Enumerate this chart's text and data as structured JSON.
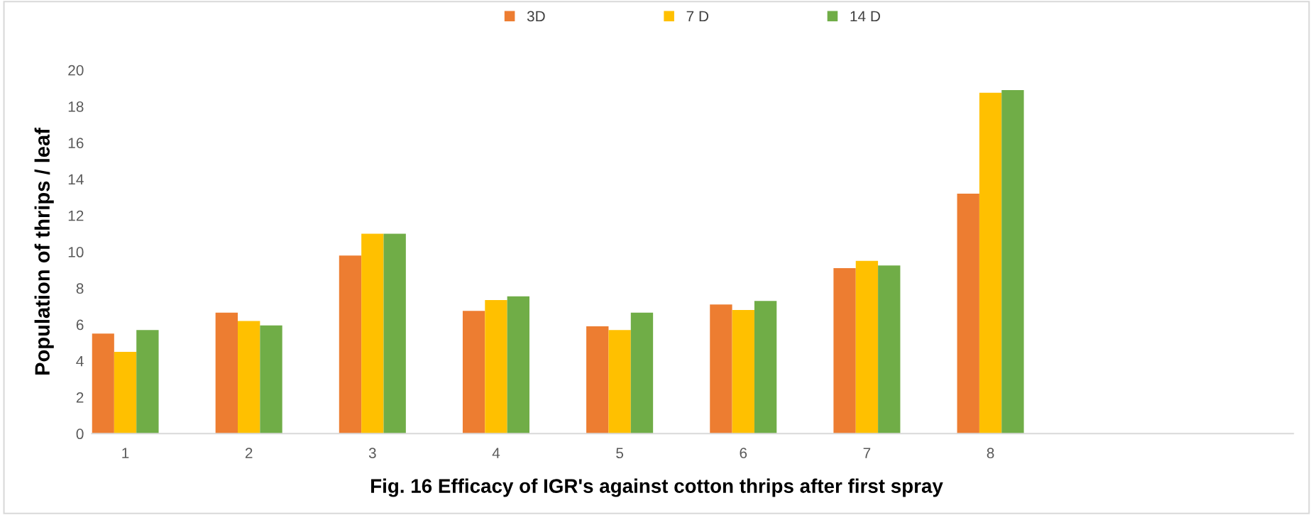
{
  "chart_data": {
    "type": "bar",
    "title": "Fig. 16 Efficacy of IGR's against cotton thrips after first spray",
    "ylabel": "Population of thrips / leaf",
    "categories": [
      "1",
      "2",
      "3",
      "4",
      "5",
      "6",
      "7",
      "8",
      null,
      null
    ],
    "series": [
      {
        "name": "3D",
        "color": "#ed7d31",
        "values": [
          5.5,
          6.65,
          9.8,
          6.75,
          5.9,
          7.1,
          9.1,
          13.2,
          null,
          null
        ]
      },
      {
        "name": "7 D",
        "color": "#ffc000",
        "values": [
          4.5,
          6.2,
          11.0,
          7.35,
          5.7,
          6.8,
          9.5,
          18.75,
          null,
          null
        ]
      },
      {
        "name": "14 D",
        "color": "#70ad47",
        "values": [
          5.7,
          5.95,
          11.0,
          7.55,
          6.65,
          7.3,
          9.25,
          18.9,
          null,
          null
        ]
      }
    ],
    "ylim": [
      0,
      20
    ],
    "yticks": [
      0,
      2,
      4,
      6,
      8,
      10,
      12,
      14,
      16,
      18,
      20
    ],
    "grid": false,
    "legend": "top"
  }
}
